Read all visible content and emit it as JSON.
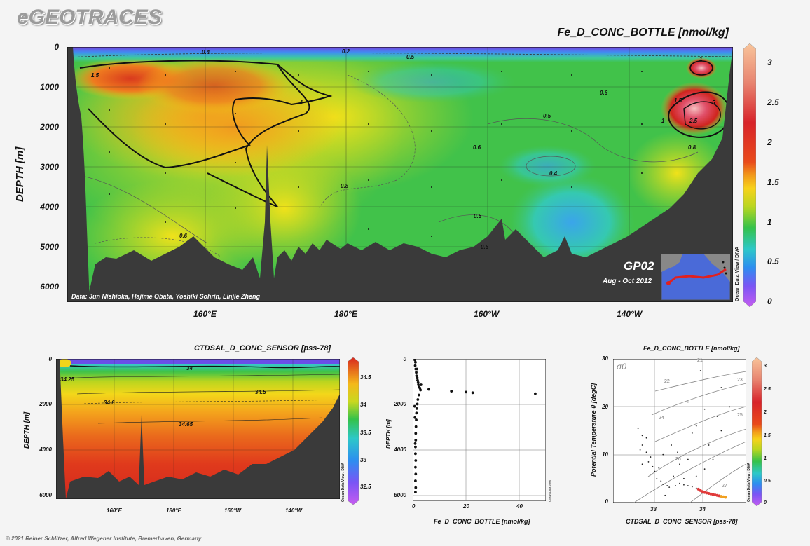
{
  "brand": "eGEOTRACES",
  "footer": "© 2021 Reiner Schlitzer, Alfred Wegener Institute, Bremerhaven, Germany",
  "chart_data": [
    {
      "type": "heatmap",
      "title": "Fe_D_CONC_BOTTLE [nmol/kg]",
      "ylabel": "DEPTH [m]",
      "x_ticks": [
        "160°E",
        "180°E",
        "160°W",
        "140°W"
      ],
      "y_ticks": [
        "0",
        "1000",
        "2000",
        "3000",
        "4000",
        "5000",
        "6000"
      ],
      "colorbar_ticks": [
        "3",
        "2.5",
        "2",
        "1.5",
        "1",
        "0.5",
        "0"
      ],
      "contour_labels": [
        "0.4",
        "0.2",
        "0.5",
        "1.5",
        "1",
        "0.6",
        "0.5",
        "0.6",
        "0.4",
        "0.8",
        "0.5",
        "0.6",
        "0.6",
        "1",
        "1.5",
        "2.5",
        "5",
        "1",
        "0.8"
      ],
      "credits": "Data: Jun Nishioka, Hajime Obata, Yoshiki Sohrin, Linjie Zheng",
      "section": "GP02",
      "period": "Aug - Oct 2012",
      "watermark": "Ocean Data View / DIVA"
    },
    {
      "type": "heatmap",
      "title": "CTDSAL_D_CONC_SENSOR [pss-78]",
      "ylabel": "DEPTH [m]",
      "x_ticks": [
        "160°E",
        "180°E",
        "160°W",
        "140°W"
      ],
      "y_ticks": [
        "0",
        "2000",
        "4000",
        "6000"
      ],
      "colorbar_ticks": [
        "34.5",
        "34",
        "33.5",
        "33",
        "32.5"
      ],
      "contour_labels": [
        "34",
        "34.25",
        "34.5",
        "34.6",
        "34.65"
      ],
      "watermark": "Ocean Data View / DIVA"
    },
    {
      "type": "scatter",
      "xlabel": "Fe_D_CONC_BOTTLE [nmol/kg]",
      "ylabel": "DEPTH [m]",
      "x_ticks": [
        "0",
        "20",
        "40"
      ],
      "y_ticks": [
        "0",
        "2000",
        "4000",
        "6000"
      ],
      "xlim": [
        0,
        50
      ],
      "ylim": [
        6300,
        0
      ],
      "points": [
        [
          5.5,
          1350
        ],
        [
          14,
          1430
        ],
        [
          19.5,
          1470
        ],
        [
          22,
          1500
        ],
        [
          45.5,
          1540
        ],
        [
          0.3,
          50
        ],
        [
          0.5,
          150
        ],
        [
          0.4,
          300
        ],
        [
          0.6,
          450
        ],
        [
          0.8,
          600
        ],
        [
          0.9,
          750
        ],
        [
          1.2,
          850
        ],
        [
          1.3,
          950
        ],
        [
          1.5,
          1050
        ],
        [
          1.6,
          1150
        ],
        [
          1.9,
          1250
        ],
        [
          2.2,
          1300
        ],
        [
          2.4,
          1380
        ],
        [
          1.8,
          1600
        ],
        [
          1.4,
          1800
        ],
        [
          1.2,
          2000
        ],
        [
          1.0,
          2200
        ],
        [
          0.9,
          2400
        ],
        [
          0.8,
          2700
        ],
        [
          0.7,
          3000
        ],
        [
          0.6,
          3300
        ],
        [
          0.6,
          3600
        ],
        [
          0.5,
          3900
        ],
        [
          0.5,
          4200
        ],
        [
          0.6,
          4500
        ],
        [
          0.5,
          4800
        ],
        [
          0.6,
          5100
        ],
        [
          0.5,
          5400
        ],
        [
          0.6,
          5700
        ],
        [
          0.5,
          5900
        ],
        [
          0.2,
          2100
        ],
        [
          0.3,
          2600
        ],
        [
          1.1,
          450
        ],
        [
          2.6,
          1150
        ],
        [
          0.4,
          3750
        ]
      ],
      "watermark": "Ocean Data View"
    },
    {
      "type": "scatter",
      "title": "Fe_D_CONC_BOTTLE [nmol/kg]",
      "xlabel": "CTDSAL_D_CONC_SENSOR [pss-78]",
      "ylabel": "Potential Temperature θ [degC]",
      "x_ticks": [
        "33",
        "34"
      ],
      "y_ticks": [
        "0",
        "10",
        "20",
        "30"
      ],
      "xlim": [
        32.0,
        35.2
      ],
      "ylim": [
        0,
        30
      ],
      "sigma_label": "σ0",
      "isopycnal_labels": [
        "21",
        "22",
        "23",
        "24",
        "25",
        "26",
        "27"
      ],
      "colorbar_ticks": [
        "3",
        "2.5",
        "2",
        "1.5",
        "1",
        "0.5",
        "0"
      ],
      "points": [
        [
          32.6,
          15.5
        ],
        [
          32.7,
          14
        ],
        [
          32.8,
          13.5
        ],
        [
          32.7,
          12
        ],
        [
          32.65,
          11
        ],
        [
          32.8,
          10.5
        ],
        [
          32.9,
          9.5
        ],
        [
          32.85,
          8.5
        ],
        [
          32.7,
          8
        ],
        [
          32.95,
          7.5
        ],
        [
          33.0,
          6.5
        ],
        [
          33.1,
          7.2
        ],
        [
          32.9,
          5.8
        ],
        [
          33.05,
          5
        ],
        [
          33.15,
          4.5
        ],
        [
          33.2,
          3.8
        ],
        [
          33.3,
          3.5
        ],
        [
          33.35,
          3.2
        ],
        [
          33.5,
          3.5
        ],
        [
          33.6,
          4
        ],
        [
          33.7,
          3.7
        ],
        [
          33.8,
          3.5
        ],
        [
          33.9,
          3.3
        ],
        [
          34.0,
          3.0
        ],
        [
          34.05,
          2.8
        ],
        [
          34.1,
          2.5
        ],
        [
          34.15,
          2.3
        ],
        [
          34.2,
          2.1
        ],
        [
          34.25,
          2.0
        ],
        [
          34.3,
          1.9
        ],
        [
          34.35,
          1.8
        ],
        [
          34.4,
          1.7
        ],
        [
          34.45,
          1.6
        ],
        [
          34.5,
          1.5
        ],
        [
          34.55,
          1.4
        ],
        [
          34.6,
          1.3
        ],
        [
          34.65,
          1.2
        ],
        [
          34.68,
          1.15
        ],
        [
          34.7,
          1.1
        ],
        [
          33.8,
          21
        ],
        [
          34.2,
          19.5
        ],
        [
          34.5,
          18
        ],
        [
          34.6,
          24
        ],
        [
          34.1,
          27.5
        ],
        [
          33.9,
          14.5
        ],
        [
          33.4,
          12
        ],
        [
          33.55,
          10.5
        ],
        [
          33.8,
          9
        ],
        [
          34.3,
          12
        ],
        [
          34.4,
          9
        ],
        [
          34.0,
          16
        ],
        [
          34.6,
          15
        ],
        [
          34.8,
          20
        ],
        [
          33.2,
          10
        ],
        [
          33.25,
          1.5
        ],
        [
          34.0,
          5.5
        ],
        [
          34.2,
          7
        ],
        [
          33.6,
          8
        ],
        [
          33.45,
          5.5
        ],
        [
          33.7,
          5
        ]
      ],
      "watermark": "Ocean Data View / DIVA"
    }
  ]
}
